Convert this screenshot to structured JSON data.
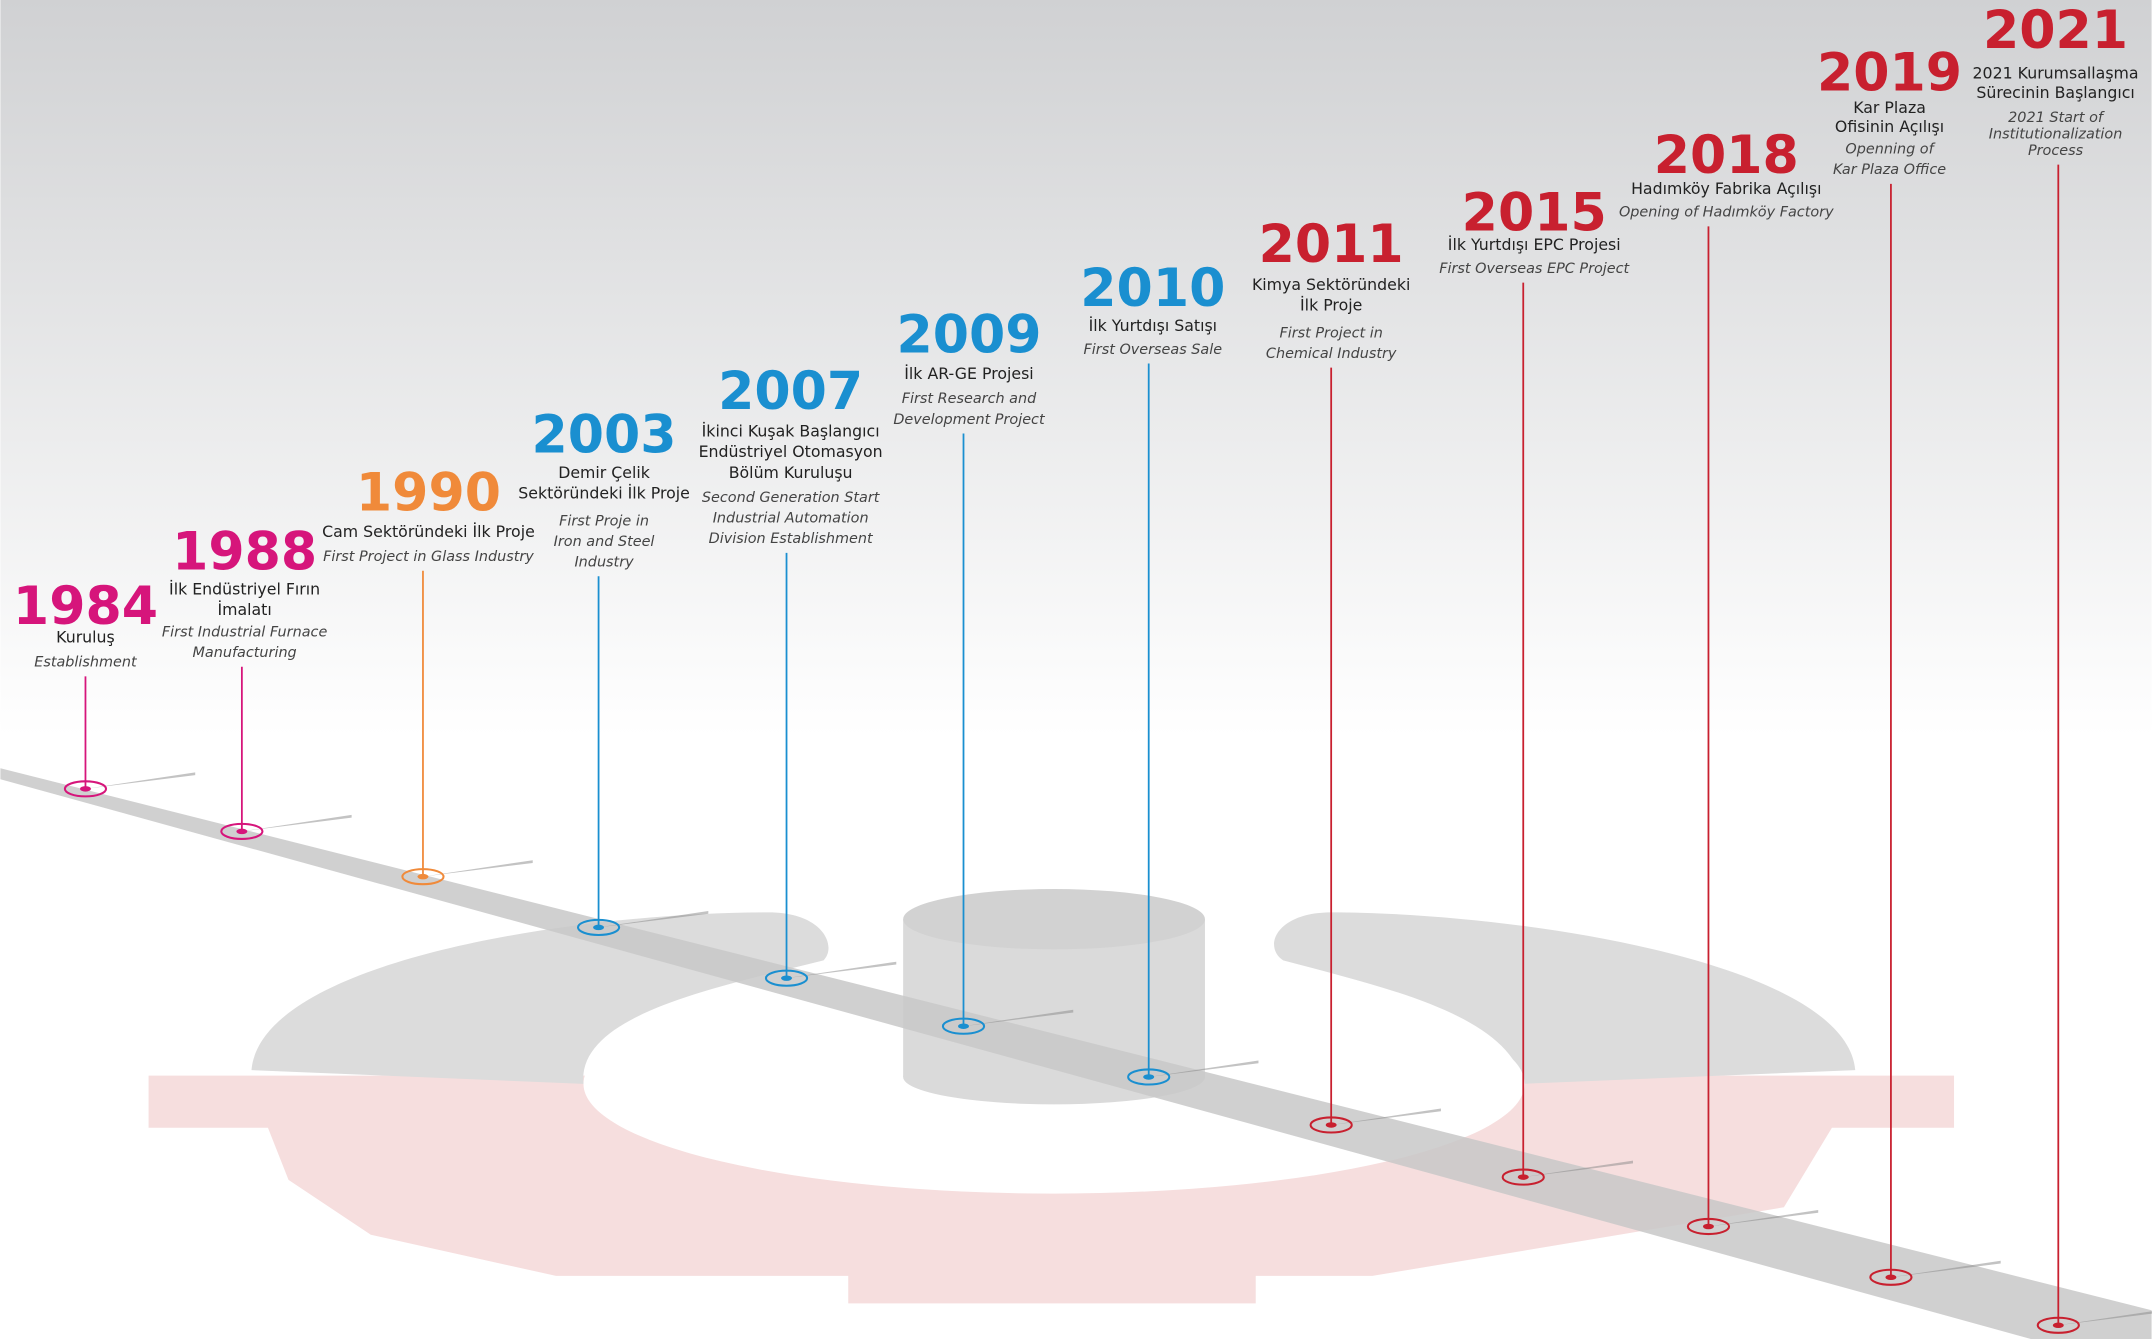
{
  "timeline": {
    "events": [
      {
        "year": "1984",
        "color": "#d6157b",
        "title": [
          "Kuruluş"
        ],
        "subtitle": [
          "Establishment"
        ]
      },
      {
        "year": "1988",
        "color": "#d6157b",
        "title": [
          "İlk Endüstriyel Fırın",
          "İmalatı"
        ],
        "subtitle": [
          "First Industrial Furnace",
          "Manufacturing"
        ]
      },
      {
        "year": "1990",
        "color": "#f08a3a",
        "title": [
          "Cam Sektöründeki İlk Proje"
        ],
        "subtitle": [
          "First Project in Glass Industry"
        ]
      },
      {
        "year": "2003",
        "color": "#1a8fd0",
        "title": [
          "Demir Çelik",
          "Sektöründeki İlk Proje"
        ],
        "subtitle": [
          "First Proje in",
          "Iron and Steel",
          "Industry"
        ]
      },
      {
        "year": "2007",
        "color": "#1a8fd0",
        "title": [
          "İkinci Kuşak Başlangıcı",
          "Endüstriyel Otomasyon",
          "Bölüm Kuruluşu"
        ],
        "subtitle": [
          "Second Generation Start",
          "Industrial Automation",
          "Division Establishment"
        ]
      },
      {
        "year": "2009",
        "color": "#1a8fd0",
        "title": [
          "İlk AR-GE Projesi"
        ],
        "subtitle": [
          "First Research and",
          "Development Project"
        ]
      },
      {
        "year": "2010",
        "color": "#1a8fd0",
        "title": [
          "İlk Yurtdışı Satışı"
        ],
        "subtitle": [
          "First Overseas Sale"
        ]
      },
      {
        "year": "2011",
        "color": "#c8202f",
        "title": [
          "Kimya Sektöründeki",
          "İlk Proje"
        ],
        "subtitle": [
          "First Project in",
          "Chemical Industry"
        ]
      },
      {
        "year": "2015",
        "color": "#c8202f",
        "title": [
          "İlk Yurtdışı EPC Projesi"
        ],
        "subtitle": [
          "First Overseas EPC Project"
        ]
      },
      {
        "year": "2018",
        "color": "#c8202f",
        "title": [
          "Hadımköy Fabrika Açılışı"
        ],
        "subtitle": [
          "Opening of Hadımköy Factory"
        ]
      },
      {
        "year": "2019",
        "color": "#c8202f",
        "title": [
          "Kar Plaza",
          "Ofisinin Açılışı"
        ],
        "subtitle": [
          "Openning of",
          "Kar Plaza Office"
        ]
      },
      {
        "year": "2021",
        "color": "#c8202f",
        "title": [
          "2021 Kurumsallaşma",
          "Sürecinin Başlangıcı"
        ],
        "subtitle": [
          "2021 Start of",
          "Institutionalization",
          "Process"
        ]
      }
    ]
  }
}
